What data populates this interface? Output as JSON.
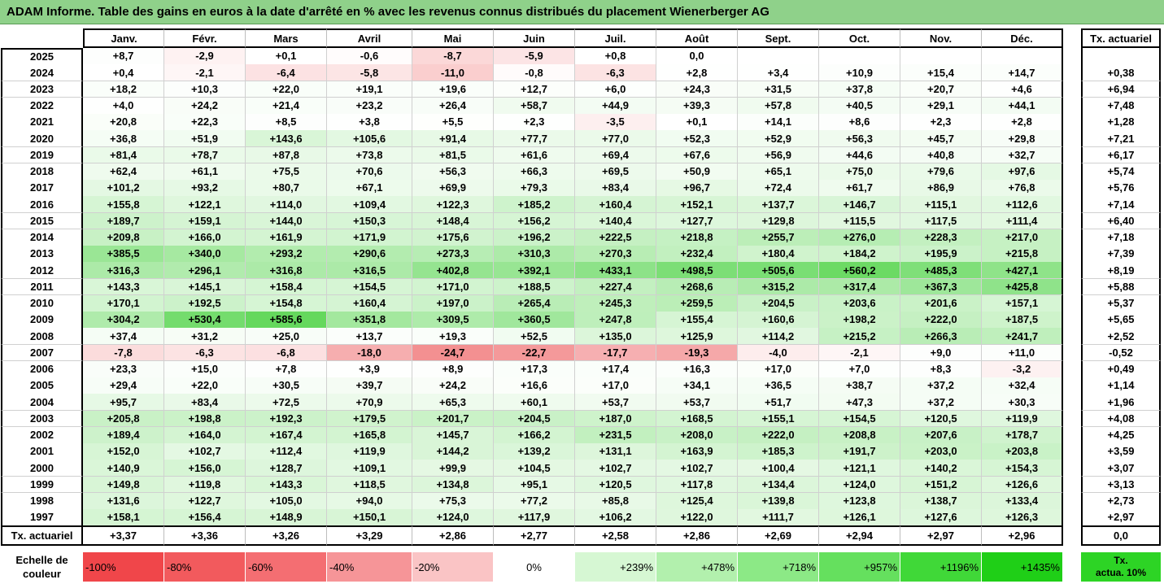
{
  "title": "ADAM Informe. Table des gains en euros à la date d'arrêté en % avec les revenus connus distribués du placement Wienerberger AG",
  "chart_data": {
    "type": "table",
    "months": [
      "Janv.",
      "Févr.",
      "Mars",
      "Avril",
      "Mai",
      "Juin",
      "Juil.",
      "Août",
      "Sept.",
      "Oct.",
      "Nov.",
      "Déc."
    ],
    "rate_header": "Tx. actuariel",
    "rows": [
      {
        "year": "2025",
        "values": [
          "+8,7",
          "-2,9",
          "+0,1",
          "-0,6",
          "-8,7",
          "-5,9",
          "+0,8",
          "0,0",
          "",
          "",
          "",
          ""
        ],
        "rate": ""
      },
      {
        "year": "2024",
        "values": [
          "+0,4",
          "-2,1",
          "-6,4",
          "-5,8",
          "-11,0",
          "-0,8",
          "-6,3",
          "+2,8",
          "+3,4",
          "+10,9",
          "+15,4",
          "+14,7"
        ],
        "rate": "+0,38"
      },
      {
        "year": "2023",
        "values": [
          "+18,2",
          "+10,3",
          "+22,0",
          "+19,1",
          "+19,6",
          "+12,7",
          "+6,0",
          "+24,3",
          "+31,5",
          "+37,8",
          "+20,7",
          "+4,6"
        ],
        "rate": "+6,94"
      },
      {
        "year": "2022",
        "values": [
          "+4,0",
          "+24,2",
          "+21,4",
          "+23,2",
          "+26,4",
          "+58,7",
          "+44,9",
          "+39,3",
          "+57,8",
          "+40,5",
          "+29,1",
          "+44,1"
        ],
        "rate": "+7,48"
      },
      {
        "year": "2021",
        "values": [
          "+20,8",
          "+22,3",
          "+8,5",
          "+3,8",
          "+5,5",
          "+2,3",
          "-3,5",
          "+0,1",
          "+14,1",
          "+8,6",
          "+2,3",
          "+2,8"
        ],
        "rate": "+1,28"
      },
      {
        "year": "2020",
        "values": [
          "+36,8",
          "+51,9",
          "+143,6",
          "+105,6",
          "+91,4",
          "+77,7",
          "+77,0",
          "+52,3",
          "+52,9",
          "+56,3",
          "+45,7",
          "+29,8"
        ],
        "rate": "+7,21"
      },
      {
        "year": "2019",
        "values": [
          "+81,4",
          "+78,7",
          "+87,8",
          "+73,8",
          "+81,5",
          "+61,6",
          "+69,4",
          "+67,6",
          "+56,9",
          "+44,6",
          "+40,8",
          "+32,7"
        ],
        "rate": "+6,17"
      },
      {
        "year": "2018",
        "values": [
          "+62,4",
          "+61,1",
          "+75,5",
          "+70,6",
          "+56,3",
          "+66,3",
          "+69,5",
          "+50,9",
          "+65,1",
          "+75,0",
          "+79,6",
          "+97,6"
        ],
        "rate": "+5,74"
      },
      {
        "year": "2017",
        "values": [
          "+101,2",
          "+93,2",
          "+80,7",
          "+67,1",
          "+69,9",
          "+79,3",
          "+83,4",
          "+96,7",
          "+72,4",
          "+61,7",
          "+86,9",
          "+76,8"
        ],
        "rate": "+5,76"
      },
      {
        "year": "2016",
        "values": [
          "+155,8",
          "+122,1",
          "+114,0",
          "+109,4",
          "+122,3",
          "+185,2",
          "+160,4",
          "+152,1",
          "+137,7",
          "+146,7",
          "+115,1",
          "+112,6"
        ],
        "rate": "+7,14"
      },
      {
        "year": "2015",
        "values": [
          "+189,7",
          "+159,1",
          "+144,0",
          "+150,3",
          "+148,4",
          "+156,2",
          "+140,4",
          "+127,7",
          "+129,8",
          "+115,5",
          "+117,5",
          "+111,4"
        ],
        "rate": "+6,40"
      },
      {
        "year": "2014",
        "values": [
          "+209,8",
          "+166,0",
          "+161,9",
          "+171,9",
          "+175,6",
          "+196,2",
          "+222,5",
          "+218,8",
          "+255,7",
          "+276,0",
          "+228,3",
          "+217,0"
        ],
        "rate": "+7,18"
      },
      {
        "year": "2013",
        "values": [
          "+385,5",
          "+340,0",
          "+293,2",
          "+290,6",
          "+273,3",
          "+310,3",
          "+270,3",
          "+232,4",
          "+180,4",
          "+184,2",
          "+195,9",
          "+215,8"
        ],
        "rate": "+7,39"
      },
      {
        "year": "2012",
        "values": [
          "+316,3",
          "+296,1",
          "+316,8",
          "+316,5",
          "+402,8",
          "+392,1",
          "+433,1",
          "+498,5",
          "+505,6",
          "+560,2",
          "+485,3",
          "+427,1"
        ],
        "rate": "+8,19"
      },
      {
        "year": "2011",
        "values": [
          "+143,3",
          "+145,1",
          "+158,4",
          "+154,5",
          "+171,0",
          "+188,5",
          "+227,4",
          "+268,6",
          "+315,2",
          "+317,4",
          "+367,3",
          "+425,8"
        ],
        "rate": "+5,88"
      },
      {
        "year": "2010",
        "values": [
          "+170,1",
          "+192,5",
          "+154,8",
          "+160,4",
          "+197,0",
          "+265,4",
          "+245,3",
          "+259,5",
          "+204,5",
          "+203,6",
          "+201,6",
          "+157,1"
        ],
        "rate": "+5,37"
      },
      {
        "year": "2009",
        "values": [
          "+304,2",
          "+530,4",
          "+585,6",
          "+351,8",
          "+309,5",
          "+360,5",
          "+247,8",
          "+155,4",
          "+160,6",
          "+198,2",
          "+222,0",
          "+187,5"
        ],
        "rate": "+5,65"
      },
      {
        "year": "2008",
        "values": [
          "+37,4",
          "+31,2",
          "+25,0",
          "+13,7",
          "+19,3",
          "+52,5",
          "+135,0",
          "+125,9",
          "+114,2",
          "+215,2",
          "+266,3",
          "+241,7"
        ],
        "rate": "+2,52"
      },
      {
        "year": "2007",
        "values": [
          "-7,8",
          "-6,3",
          "-6,8",
          "-18,0",
          "-24,7",
          "-22,7",
          "-17,7",
          "-19,3",
          "-4,0",
          "-2,1",
          "+9,0",
          "+11,0"
        ],
        "rate": "-0,52"
      },
      {
        "year": "2006",
        "values": [
          "+23,3",
          "+15,0",
          "+7,8",
          "+3,9",
          "+8,9",
          "+17,3",
          "+17,4",
          "+16,3",
          "+17,0",
          "+7,0",
          "+8,3",
          "-3,2"
        ],
        "rate": "+0,49"
      },
      {
        "year": "2005",
        "values": [
          "+29,4",
          "+22,0",
          "+30,5",
          "+39,7",
          "+24,2",
          "+16,6",
          "+17,0",
          "+34,1",
          "+36,5",
          "+38,7",
          "+37,2",
          "+32,4"
        ],
        "rate": "+1,14"
      },
      {
        "year": "2004",
        "values": [
          "+95,7",
          "+83,4",
          "+72,5",
          "+70,9",
          "+65,3",
          "+60,1",
          "+53,7",
          "+53,7",
          "+51,7",
          "+47,3",
          "+37,2",
          "+30,3"
        ],
        "rate": "+1,96"
      },
      {
        "year": "2003",
        "values": [
          "+205,8",
          "+198,8",
          "+192,3",
          "+179,5",
          "+201,7",
          "+204,5",
          "+187,0",
          "+168,5",
          "+155,1",
          "+154,5",
          "+120,5",
          "+119,9"
        ],
        "rate": "+4,08"
      },
      {
        "year": "2002",
        "values": [
          "+189,4",
          "+164,0",
          "+167,4",
          "+165,8",
          "+145,7",
          "+166,2",
          "+231,5",
          "+208,0",
          "+222,0",
          "+208,8",
          "+207,6",
          "+178,7"
        ],
        "rate": "+4,25"
      },
      {
        "year": "2001",
        "values": [
          "+152,0",
          "+102,7",
          "+112,4",
          "+119,9",
          "+144,2",
          "+139,2",
          "+131,1",
          "+163,9",
          "+185,3",
          "+191,7",
          "+203,0",
          "+203,8"
        ],
        "rate": "+3,59"
      },
      {
        "year": "2000",
        "values": [
          "+140,9",
          "+156,0",
          "+128,7",
          "+109,1",
          "+99,9",
          "+104,5",
          "+102,7",
          "+102,7",
          "+100,4",
          "+121,1",
          "+140,2",
          "+154,3"
        ],
        "rate": "+3,07"
      },
      {
        "year": "1999",
        "values": [
          "+149,8",
          "+119,8",
          "+143,3",
          "+118,5",
          "+134,8",
          "+95,1",
          "+120,5",
          "+117,8",
          "+134,4",
          "+124,0",
          "+151,2",
          "+126,6"
        ],
        "rate": "+3,13"
      },
      {
        "year": "1998",
        "values": [
          "+131,6",
          "+122,7",
          "+105,0",
          "+94,0",
          "+75,3",
          "+77,2",
          "+85,8",
          "+125,4",
          "+139,8",
          "+123,8",
          "+138,7",
          "+133,4"
        ],
        "rate": "+2,73"
      },
      {
        "year": "1997",
        "values": [
          "+158,1",
          "+156,4",
          "+148,9",
          "+150,1",
          "+124,0",
          "+117,9",
          "+106,2",
          "+122,0",
          "+111,7",
          "+126,1",
          "+127,6",
          "+126,3"
        ],
        "rate": "+2,97"
      }
    ],
    "footer": {
      "label": "Tx. actuariel",
      "values": [
        "+3,37",
        "+3,36",
        "+3,26",
        "+3,29",
        "+2,86",
        "+2,77",
        "+2,58",
        "+2,86",
        "+2,69",
        "+2,94",
        "+2,97",
        "+2,96"
      ],
      "rate": "0,0"
    },
    "color_scale": {
      "label_line1": "Echelle de",
      "label_line2": "couleur",
      "steps": [
        {
          "text": "-100%",
          "color": "#f0464a",
          "align": "left"
        },
        {
          "text": "-80%",
          "color": "#f25a5d",
          "align": "left"
        },
        {
          "text": "-60%",
          "color": "#f46e72",
          "align": "left"
        },
        {
          "text": "-40%",
          "color": "#f69598",
          "align": "left"
        },
        {
          "text": "-20%",
          "color": "#fac4c5",
          "align": "left"
        },
        {
          "text": "0%",
          "color": "#ffffff",
          "align": "center"
        },
        {
          "text": "+239%",
          "color": "#d6f7d3",
          "align": "right"
        },
        {
          "text": "+478%",
          "color": "#b2f0ad",
          "align": "right"
        },
        {
          "text": "+718%",
          "color": "#8ce986",
          "align": "right"
        },
        {
          "text": "+957%",
          "color": "#65e05e",
          "align": "right"
        },
        {
          "text": "+1196%",
          "color": "#40d838",
          "align": "right"
        },
        {
          "text": "+1435%",
          "color": "#1fcf17",
          "align": "right"
        }
      ],
      "legend_line1": "Tx.",
      "legend_line2": "actua. 10%",
      "legend_color": "#2dd425"
    }
  }
}
